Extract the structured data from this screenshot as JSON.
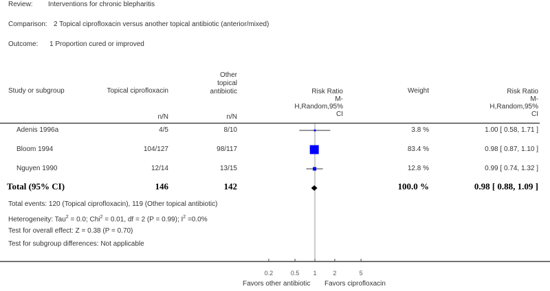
{
  "meta": {
    "review_label": "Review:",
    "review": "Interventions for chronic blepharitis",
    "comparison_label": "Comparison:",
    "comparison": "2 Topical ciprofloxacin versus another topical antibiotic (anterior/mixed)",
    "outcome_label": "Outcome:",
    "outcome": "1 Proportion cured or improved"
  },
  "headers": {
    "study": "Study or subgroup",
    "group1": "Topical ciprofloxacin",
    "group2_l1": "Other",
    "group2_l2": "topical",
    "group2_l3": "antibiotic",
    "nn1": "n/N",
    "nn2": "n/N",
    "rr_plot_l1": "Risk Ratio",
    "rr_plot_l2": "M-",
    "rr_plot_l3": "H,Random,95%",
    "rr_plot_l4": "CI",
    "weight": "Weight",
    "rr_l1": "Risk Ratio",
    "rr_l2": "M-",
    "rr_l3": "H,Random,95%",
    "rr_l4": "CI"
  },
  "chart_data": {
    "type": "forest",
    "scale": "log",
    "xlim": [
      0.2,
      5
    ],
    "ticks": [
      0.2,
      0.5,
      1,
      2,
      5
    ],
    "tick_labels": [
      "0.2",
      "0.5",
      "1",
      "2",
      "5"
    ],
    "left_label": "Favors other antibiotic",
    "right_label": "Favors ciprofloxacin",
    "marker_color": "#0000ff",
    "studies": [
      {
        "name": "Adenis 1996a",
        "g1": "4/5",
        "g2": "8/10",
        "weight": 3.8,
        "weight_text": "3.8 %",
        "rr": 1.0,
        "lo": 0.58,
        "hi": 1.71,
        "ci_text": "1.00 [ 0.58, 1.71 ]"
      },
      {
        "name": "Bloom 1994",
        "g1": "104/127",
        "g2": "98/117",
        "weight": 83.4,
        "weight_text": "83.4 %",
        "rr": 0.98,
        "lo": 0.87,
        "hi": 1.1,
        "ci_text": "0.98 [ 0.87, 1.10 ]"
      },
      {
        "name": "Nguyen 1990",
        "g1": "12/14",
        "g2": "13/15",
        "weight": 12.8,
        "weight_text": "12.8 %",
        "rr": 0.99,
        "lo": 0.74,
        "hi": 1.32,
        "ci_text": "0.99 [ 0.74, 1.32 ]"
      }
    ],
    "total": {
      "name": "Total (95% CI)",
      "g1": "146",
      "g2": "142",
      "weight_text": "100.0 %",
      "rr": 0.98,
      "lo": 0.88,
      "hi": 1.09,
      "ci_text": "0.98 [ 0.88, 1.09 ]"
    }
  },
  "footnotes": {
    "events": "Total events: 120 (Topical ciprofloxacin), 119 (Other topical antibiotic)",
    "heterogeneity_a": "Heterogeneity: Tau",
    "heterogeneity_b": " = 0.0; Chi",
    "heterogeneity_c": " = 0.01, df = 2 (P = 0.99); I",
    "heterogeneity_d": " =0.0%",
    "overall": "Test for overall effect: Z = 0.38 (P = 0.70)",
    "subgroup": "Test for subgroup differences: Not applicable"
  }
}
